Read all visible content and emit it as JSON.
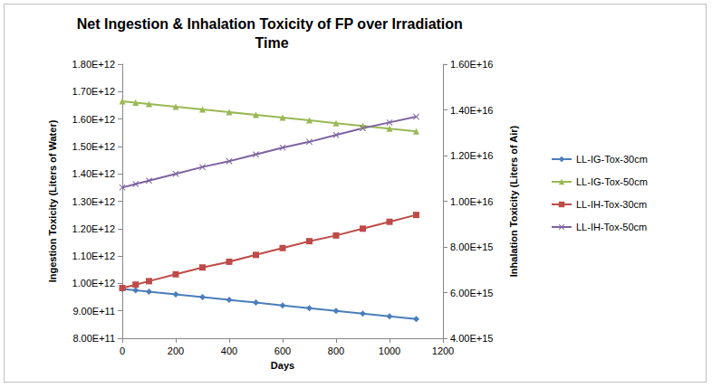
{
  "chart_data": {
    "type": "line",
    "title": "Net Ingestion & Inhalation Toxicity of FP over Irradiation Time",
    "x_label": "Days",
    "y_label": "Ingestion Toxicity (Liters of Water)",
    "y2_label": "Inhalation Toxicity (Liters of Air)",
    "x": [
      0,
      50,
      100,
      200,
      300,
      400,
      500,
      600,
      700,
      800,
      900,
      1000,
      1100
    ],
    "xlim": [
      0,
      1200
    ],
    "xticks": [
      0,
      200,
      400,
      600,
      800,
      1000,
      1200
    ],
    "ylim": [
      800000000000,
      1800000000000
    ],
    "yticks": [
      {
        "value": 800000000000,
        "label": "8.00E+11"
      },
      {
        "value": 900000000000,
        "label": "9.00E+11"
      },
      {
        "value": 1000000000000,
        "label": "1.00E+12"
      },
      {
        "value": 1100000000000,
        "label": "1.10E+12"
      },
      {
        "value": 1200000000000,
        "label": "1.20E+12"
      },
      {
        "value": 1300000000000,
        "label": "1.30E+12"
      },
      {
        "value": 1400000000000,
        "label": "1.40E+12"
      },
      {
        "value": 1500000000000,
        "label": "1.50E+12"
      },
      {
        "value": 1600000000000,
        "label": "1.60E+12"
      },
      {
        "value": 1700000000000,
        "label": "1.70E+12"
      },
      {
        "value": 1800000000000,
        "label": "1.80E+12"
      }
    ],
    "y2lim": [
      4000000000000000,
      16000000000000000
    ],
    "y2ticks": [
      {
        "value": 4000000000000000,
        "label": "4.00E+15"
      },
      {
        "value": 6000000000000000,
        "label": "6.00E+15"
      },
      {
        "value": 8000000000000000,
        "label": "8.00E+15"
      },
      {
        "value": 10000000000000000,
        "label": "1.00E+16"
      },
      {
        "value": 12000000000000000,
        "label": "1.20E+16"
      },
      {
        "value": 14000000000000000,
        "label": "1.40E+16"
      },
      {
        "value": 16000000000000000,
        "label": "1.60E+16"
      }
    ],
    "grid": false,
    "legend": "right",
    "series": [
      {
        "name": "LL-IG-Tox-30cm",
        "color": "#4a7ebb",
        "marker": "diamond",
        "values": [
          980000000000,
          975000000000,
          970000000000,
          960000000000,
          950000000000,
          940000000000,
          930000000000,
          920000000000,
          910000000000,
          900000000000,
          890000000000,
          880000000000,
          870000000000
        ]
      },
      {
        "name": "LL-IG-Tox-50cm",
        "color": "#98b954",
        "marker": "triangle",
        "values": [
          1665000000000,
          1660000000000,
          1655000000000,
          1645000000000,
          1635000000000,
          1625000000000,
          1615000000000,
          1605000000000,
          1595000000000,
          1585000000000,
          1575000000000,
          1565000000000,
          1555000000000
        ]
      },
      {
        "name": "LL-IH-Tox-30cm",
        "color": "#be4b48",
        "marker": "square",
        "axis": "y2",
        "values": [
          6200000000000000,
          6350000000000000,
          6500000000000000,
          6800000000000000,
          7100000000000000,
          7350000000000000,
          7650000000000000,
          7950000000000000,
          8250000000000000,
          8500000000000000,
          8800000000000000,
          9100000000000000,
          9400000000000000
        ]
      },
      {
        "name": "LL-IH-Tox-50cm",
        "color": "#7e62a1",
        "marker": "x",
        "axis": "y2",
        "values": [
          10600000000000000,
          10750000000000000,
          10900000000000000,
          11200000000000000,
          11500000000000000,
          11750000000000000,
          12050000000000000,
          12350000000000000,
          12600000000000000,
          12900000000000000,
          13200000000000000,
          13450000000000000,
          13700000000000000
        ]
      }
    ]
  }
}
